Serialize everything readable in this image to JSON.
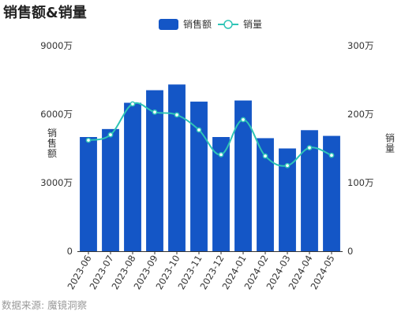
{
  "title": "销售额&销量",
  "source": "数据来源: 魔镜洞察",
  "colors": {
    "bar": "#1456C6",
    "line": "#2EC4B6"
  },
  "chart_data": {
    "type": "bar",
    "title": "销售额&销量",
    "categories": [
      "2023-06",
      "2023-07",
      "2023-08",
      "2023-09",
      "2023-10",
      "2023-11",
      "2023-12",
      "2024-01",
      "2024-02",
      "2024-03",
      "2024-04",
      "2024-05"
    ],
    "series": [
      {
        "name": "销售额",
        "type": "bar",
        "axis": "left",
        "values": [
          5000,
          5350,
          6500,
          7050,
          7300,
          6550,
          5000,
          6600,
          4950,
          4500,
          5300,
          5050
        ]
      },
      {
        "name": "销量",
        "type": "line",
        "axis": "right",
        "values": [
          162,
          170,
          215,
          203,
          199,
          177,
          141,
          192,
          139,
          125,
          151,
          140
        ]
      }
    ],
    "ylabel_left": "销售额",
    "ylabel_right": "销量",
    "ylim_left": [
      0,
      9000
    ],
    "ylim_right": [
      0,
      300
    ],
    "yticks_left": [
      "0",
      "3000万",
      "6000万",
      "9000万"
    ],
    "yticks_right": [
      "0",
      "100万",
      "200万",
      "300万"
    ],
    "legend_position": "top-center",
    "grid": false
  }
}
